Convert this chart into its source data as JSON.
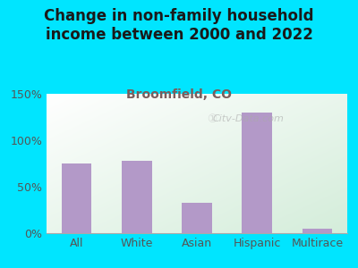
{
  "title": "Change in non-family household\nincome between 2000 and 2022",
  "subtitle": "Broomfield, CO",
  "categories": [
    "All",
    "White",
    "Asian",
    "Hispanic",
    "Multirace"
  ],
  "values": [
    75,
    78,
    33,
    130,
    5
  ],
  "bar_color": "#b399c8",
  "title_color": "#1a1a1a",
  "subtitle_color": "#7a5c5c",
  "background_outer": "#00e5ff",
  "ylim": [
    0,
    150
  ],
  "yticks": [
    0,
    50,
    100,
    150
  ],
  "ytick_labels": [
    "0%",
    "50%",
    "100%",
    "150%"
  ],
  "watermark": "Citv-Data.com",
  "title_fontsize": 12,
  "subtitle_fontsize": 10,
  "tick_fontsize": 9
}
